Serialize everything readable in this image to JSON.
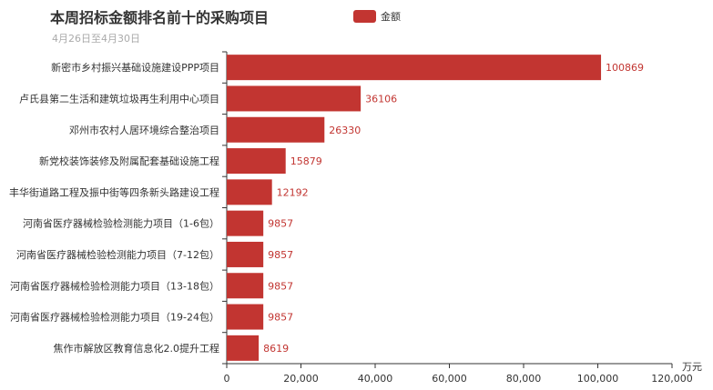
{
  "chart_data": {
    "type": "bar",
    "orientation": "horizontal",
    "title": "本周招标金额排名前十的采购项目",
    "subtitle": "4月26日至4月30日",
    "x_unit": "万元",
    "xlim": [
      0,
      120000
    ],
    "x_ticks": [
      "0",
      "20,000",
      "40,000",
      "60,000",
      "80,000",
      "100,000",
      "120,000"
    ],
    "grid": false,
    "legend_position": "top-center",
    "categories": [
      "新密市乡村振兴基础设施建设PPP项目",
      "卢氏县第二生活和建筑垃圾再生利用中心项目",
      "邓州市农村人居环境综合整治项目",
      "新党校装饰装修及附属配套基础设施工程",
      "丰华街道路工程及振中街等四条新头路建设工程",
      "河南省医疗器械检验检测能力项目（1-6包）",
      "河南省医疗器械检验检测能力项目（7-12包）",
      "河南省医疗器械检验检测能力项目（13-18包）",
      "河南省医疗器械检验检测能力项目（19-24包）",
      "焦作市解放区教育信息化2.0提升工程"
    ],
    "series": [
      {
        "name": "金额",
        "color": "#c23531",
        "values": [
          100869,
          36106,
          26330,
          15879,
          12192,
          9857,
          9857,
          9857,
          9857,
          8619
        ],
        "labels": [
          "100869",
          "36106",
          "26330",
          "15879",
          "12192",
          "9857",
          "9857",
          "9857",
          "9857",
          "8619"
        ]
      }
    ]
  }
}
